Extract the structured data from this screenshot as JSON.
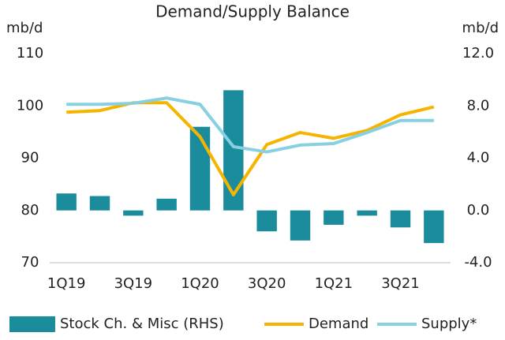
{
  "chart_data": {
    "type": "bar-line",
    "title": "Demand/Supply Balance",
    "y_label": "mb/d",
    "y2_label": "mb/d",
    "categories": [
      "1Q19",
      null,
      "3Q19",
      null,
      "1Q20",
      null,
      "3Q20",
      null,
      "1Q21",
      null,
      "3Q21",
      null
    ],
    "ylim": [
      70,
      110
    ],
    "yticks": [
      70,
      80,
      90,
      100,
      110
    ],
    "y2lim": [
      -4,
      12
    ],
    "y2ticks": [
      {
        "value": -4,
        "label": "-4.0"
      },
      {
        "value": 0,
        "label": "0.0"
      },
      {
        "value": 4,
        "label": "4.0"
      },
      {
        "value": 8,
        "label": "8.0"
      },
      {
        "value": 12,
        "label": "12.0"
      }
    ],
    "grid": false,
    "series": [
      {
        "name": "Stock Ch. & Misc (RHS)",
        "type": "bar",
        "axis": "y2",
        "color": "#1a8c9c",
        "values": [
          1.3,
          1.1,
          -0.4,
          0.9,
          6.4,
          9.2,
          -1.6,
          -2.3,
          -1.1,
          -0.4,
          -1.3,
          -2.5
        ]
      },
      {
        "name": "Demand",
        "type": "line",
        "color": "#f5b400",
        "values": [
          98.8,
          99.1,
          100.6,
          100.6,
          94.1,
          83.0,
          92.6,
          94.9,
          93.8,
          95.3,
          98.3,
          99.8
        ]
      },
      {
        "name": "Supply*",
        "type": "line",
        "color": "#86d0e2",
        "values": [
          100.3,
          100.3,
          100.5,
          101.5,
          100.3,
          92.2,
          91.2,
          92.5,
          92.8,
          94.9,
          97.2,
          97.2
        ]
      }
    ]
  }
}
